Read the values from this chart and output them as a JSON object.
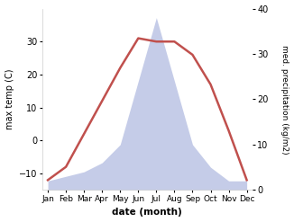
{
  "months": [
    "Jan",
    "Feb",
    "Mar",
    "Apr",
    "May",
    "Jun",
    "Jul",
    "Aug",
    "Sep",
    "Oct",
    "Nov",
    "Dec"
  ],
  "temperature": [
    -12,
    -8,
    2,
    12,
    22,
    31,
    30,
    30,
    26,
    17,
    3,
    -12
  ],
  "precipitation": [
    2,
    3,
    4,
    6,
    10,
    24,
    38,
    24,
    10,
    5,
    2,
    2
  ],
  "temp_color": "#c0504d",
  "precip_fill_color": "#c5cce8",
  "precip_edge_color": "#9aa5cc",
  "ylabel_left": "max temp (C)",
  "ylabel_right": "med. precipitation (kg/m2)",
  "xlabel": "date (month)",
  "ylim_left": [
    -15,
    40
  ],
  "ylim_right": [
    0,
    40
  ],
  "yticks_left": [
    -10,
    0,
    10,
    20,
    30
  ],
  "yticks_right": [
    0,
    10,
    20,
    30,
    40
  ],
  "bg_color": "#ffffff",
  "plot_bg_color": "#ffffff",
  "temp_linewidth": 1.8,
  "precip_scale_min": -15,
  "precip_scale_max": 40,
  "precip_data_max": 40
}
